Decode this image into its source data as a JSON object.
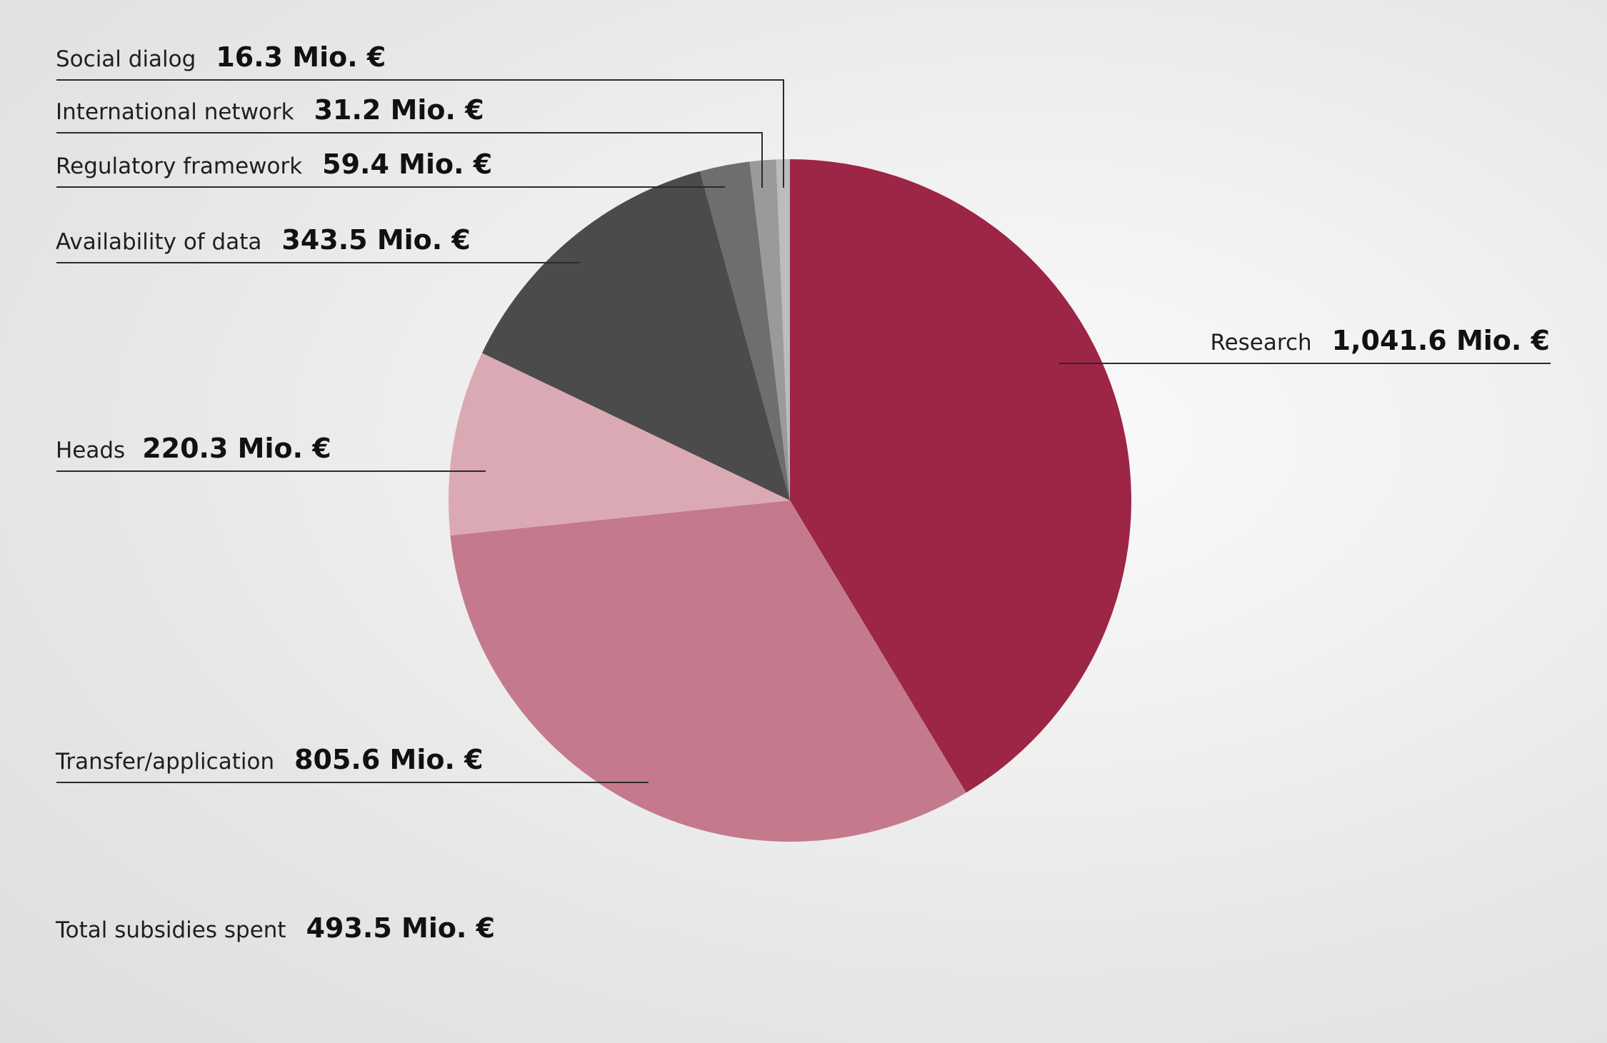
{
  "chart_data": {
    "type": "pie",
    "title": "",
    "unit": "Mio. €",
    "slices": [
      {
        "label": "Research",
        "value": 1041.6,
        "value_label": "1,041.6 Mio. €",
        "color": "#9d2546"
      },
      {
        "label": "Transfer/application",
        "value": 805.6,
        "value_label": "805.6 Mio. €",
        "color": "#c47a8c"
      },
      {
        "label": "Heads",
        "value": 220.3,
        "value_label": "220.3 Mio. €",
        "color": "#dba9b4"
      },
      {
        "label": "Availability of data",
        "value": 343.5,
        "value_label": "343.5 Mio. €",
        "color": "#4b4b4b"
      },
      {
        "label": "Regulatory framework",
        "value": 59.4,
        "value_label": "59.4 Mio. €",
        "color": "#6e6e6e"
      },
      {
        "label": "International network",
        "value": 31.2,
        "value_label": "31.2 Mio. €",
        "color": "#9a9a9a"
      },
      {
        "label": "Social dialog",
        "value": 16.3,
        "value_label": "16.3 Mio. €",
        "color": "#bcbcbc"
      }
    ],
    "start_angle_deg": 0,
    "direction": "clockwise",
    "legend": "none",
    "total": {
      "label": "Total subsidies spent",
      "value_label": "493.5 Mio. €"
    }
  }
}
